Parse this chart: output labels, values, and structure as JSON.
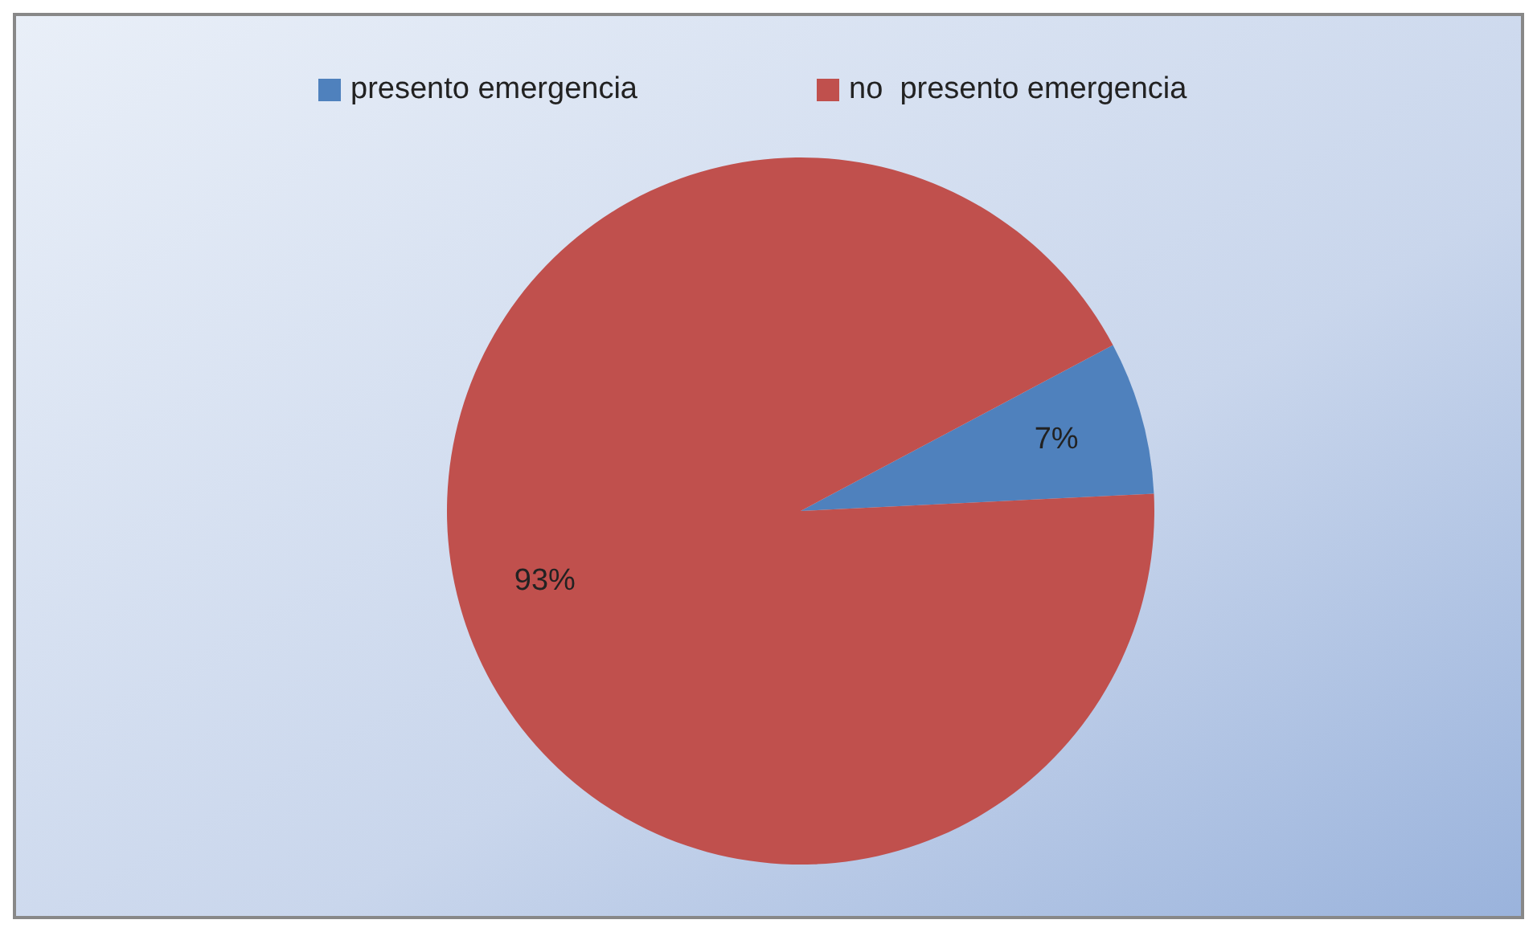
{
  "chart_data": {
    "type": "pie",
    "categories": [
      "presento emergencia",
      "no  presento emergencia"
    ],
    "values": [
      7,
      93
    ],
    "colors": [
      "#4f81bd",
      "#c0504d"
    ],
    "value_labels": [
      "7%",
      "93%"
    ],
    "legend": "top"
  }
}
